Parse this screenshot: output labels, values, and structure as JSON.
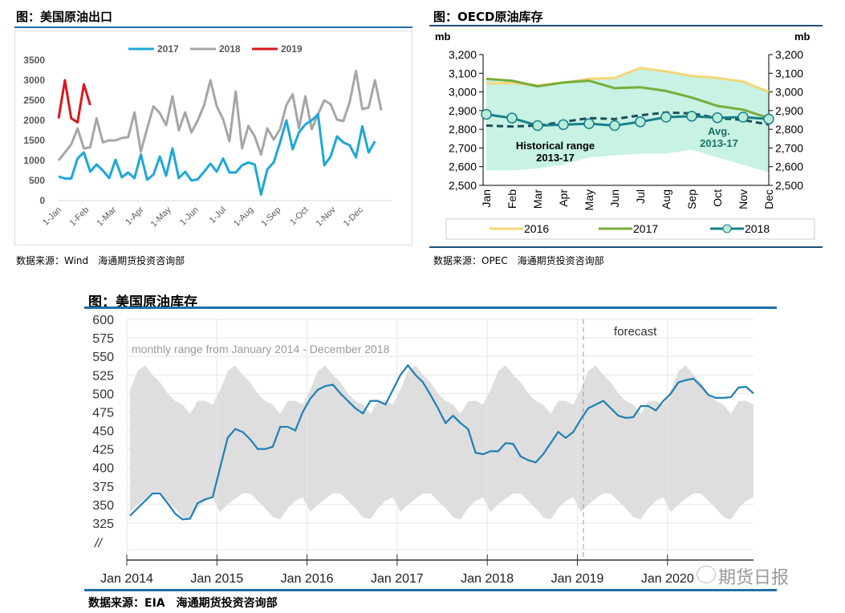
{
  "chart_data": [
    {
      "type": "line",
      "title": "图：美国原油出口",
      "source": "数据来源：Wind　海通期货投资咨询部",
      "ylim": [
        0,
        3500
      ],
      "yticks": [
        0,
        500,
        1000,
        1500,
        2000,
        2500,
        3000,
        3500
      ],
      "xticks": [
        "1-Jan",
        "1-Feb",
        "1-Mar",
        "1-Apr",
        "1-May",
        "1-Jun",
        "1-Jul",
        "1-Aug",
        "1-Sep",
        "1-Oct",
        "1-Nov",
        "1-Dec"
      ],
      "legend": "top",
      "x_unit": "week",
      "series": [
        {
          "name": "2017",
          "color": "#1ea7d8",
          "values": [
            600,
            550,
            550,
            1050,
            1200,
            720,
            900,
            750,
            560,
            1020,
            580,
            700,
            560,
            1150,
            520,
            650,
            1100,
            620,
            1300,
            560,
            720,
            500,
            530,
            720,
            920,
            720,
            1050,
            700,
            700,
            880,
            950,
            900,
            150,
            780,
            950,
            1450,
            2000,
            1280,
            1700,
            1900,
            2000,
            2150,
            880,
            1100,
            1600,
            1450,
            1380,
            1080,
            1850,
            1200,
            1480
          ]
        },
        {
          "name": "2018",
          "color": "#a6a6a6",
          "values": [
            1000,
            1200,
            1400,
            1800,
            1300,
            1330,
            2050,
            1450,
            1500,
            1500,
            1560,
            1580,
            2200,
            1220,
            1800,
            2350,
            2180,
            1880,
            2600,
            1750,
            2200,
            1700,
            2000,
            2380,
            3000,
            2350,
            2030,
            1480,
            2720,
            1300,
            1860,
            1600,
            1150,
            1800,
            1520,
            1780,
            2380,
            2650,
            1800,
            2600,
            1780,
            2150,
            2500,
            2400,
            2020,
            1980,
            2450,
            3230,
            2280,
            2320,
            3000,
            2250
          ]
        },
        {
          "name": "2019",
          "color": "#d7191c",
          "values": [
            2050,
            3000,
            2050,
            1950,
            2900,
            2380
          ]
        }
      ]
    },
    {
      "type": "line",
      "title": "图：OECD原油库存",
      "source": "数据来源：OPEC　海通期货投资咨询部",
      "ylabel": "mb",
      "ylim": [
        2500,
        3200
      ],
      "yticks": [
        "2,500",
        "2,600",
        "2,700",
        "2,800",
        "2,900",
        "3,000",
        "3,100",
        "3,200"
      ],
      "categories": [
        "Jan",
        "Feb",
        "Mar",
        "Apr",
        "May",
        "Jun",
        "Jul",
        "Aug",
        "Sep",
        "Oct",
        "Nov",
        "Dec"
      ],
      "range_label_1": "Historical range",
      "range_label_2": "2013-17",
      "avg_label_1": "Avg.",
      "avg_label_2": "2013-17",
      "range_upper": [
        3070,
        3060,
        3040,
        3055,
        3075,
        3080,
        3130,
        3110,
        3085,
        3075,
        3055,
        3000
      ],
      "range_lower": [
        2580,
        2580,
        2590,
        2610,
        2650,
        2660,
        2670,
        2670,
        2690,
        2650,
        2610,
        2570
      ],
      "avg": [
        2820,
        2815,
        2820,
        2840,
        2860,
        2855,
        2875,
        2890,
        2885,
        2860,
        2850,
        2825
      ],
      "legend": "bottom",
      "series": [
        {
          "name": "2016",
          "color": "#f5d67a",
          "values": [
            3045,
            3048,
            3035,
            3050,
            3070,
            3075,
            3128,
            3110,
            3085,
            3075,
            3055,
            3000
          ]
        },
        {
          "name": "2017",
          "color": "#77ad3a",
          "values": [
            3070,
            3060,
            3030,
            3050,
            3060,
            3020,
            3025,
            3005,
            2970,
            2925,
            2905,
            2860
          ]
        },
        {
          "name": "2018",
          "color": "#1a7f8a",
          "values": [
            2880,
            2860,
            2820,
            2825,
            2830,
            2820,
            2840,
            2865,
            2870,
            2862,
            2865,
            2855
          ]
        }
      ]
    },
    {
      "type": "area",
      "title": "图：美国原油库存",
      "source": "数据来源：EIA　海通期货投资咨询部",
      "ylim": [
        300,
        600
      ],
      "yticks": [
        325,
        350,
        375,
        400,
        425,
        450,
        475,
        500,
        525,
        550,
        575,
        600
      ],
      "axis_break": "//",
      "xticks": [
        "Jan 2014",
        "Jan 2015",
        "Jan 2016",
        "Jan 2017",
        "Jan 2018",
        "Jan 2019",
        "Jan 2020"
      ],
      "range_label": "monthly range from January 2014 - December 2018",
      "forecast_label": "forecast",
      "range_upper_monthly": [
        505,
        530,
        538,
        525,
        515,
        500,
        490,
        485,
        472,
        490,
        490,
        485
      ],
      "range_lower_monthly": [
        340,
        350,
        358,
        365,
        365,
        355,
        345,
        333,
        330,
        345,
        355,
        360
      ],
      "series": [
        {
          "name": "inventory",
          "color": "#1f7fb5",
          "values": [
            335,
            345,
            355,
            365,
            365,
            352,
            338,
            330,
            331,
            352,
            357,
            360,
            400,
            440,
            452,
            448,
            438,
            425,
            425,
            428,
            455,
            455,
            450,
            475,
            493,
            505,
            510,
            512,
            500,
            490,
            480,
            473,
            490,
            490,
            485,
            505,
            525,
            538,
            525,
            515,
            498,
            480,
            460,
            470,
            460,
            452,
            420,
            418,
            422,
            422,
            433,
            432,
            415,
            410,
            407,
            418,
            433,
            448,
            440,
            448,
            465,
            480,
            485,
            490,
            480,
            470,
            467,
            468,
            483,
            483,
            477,
            490,
            500,
            515,
            518,
            520,
            510,
            498,
            494,
            494,
            495,
            508,
            509,
            500
          ]
        }
      ]
    }
  ],
  "watermark": "期货日报"
}
